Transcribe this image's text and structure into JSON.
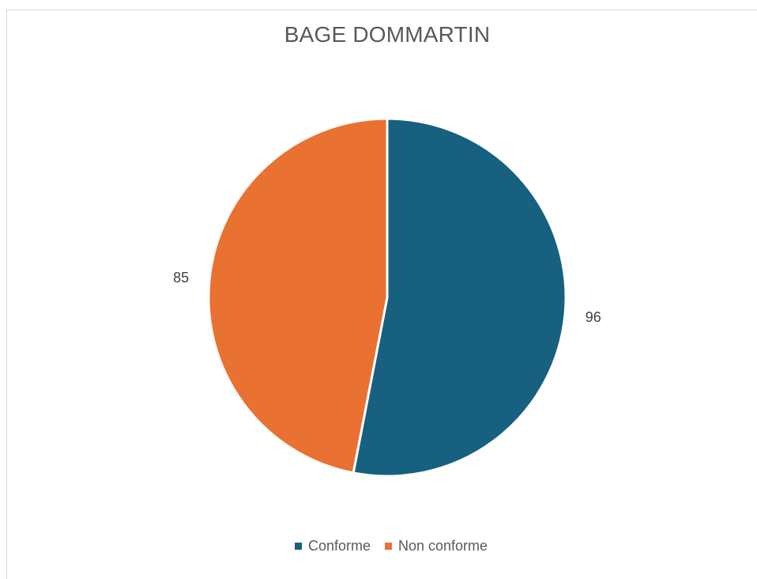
{
  "chart_data": {
    "type": "pie",
    "title": "BAGE DOMMARTIN",
    "categories": [
      "Conforme",
      "Non conforme"
    ],
    "values": [
      96,
      85
    ],
    "colors": [
      "#17607f",
      "#e97132"
    ],
    "data_labels": [
      "96",
      "85"
    ],
    "legend_position": "bottom"
  }
}
